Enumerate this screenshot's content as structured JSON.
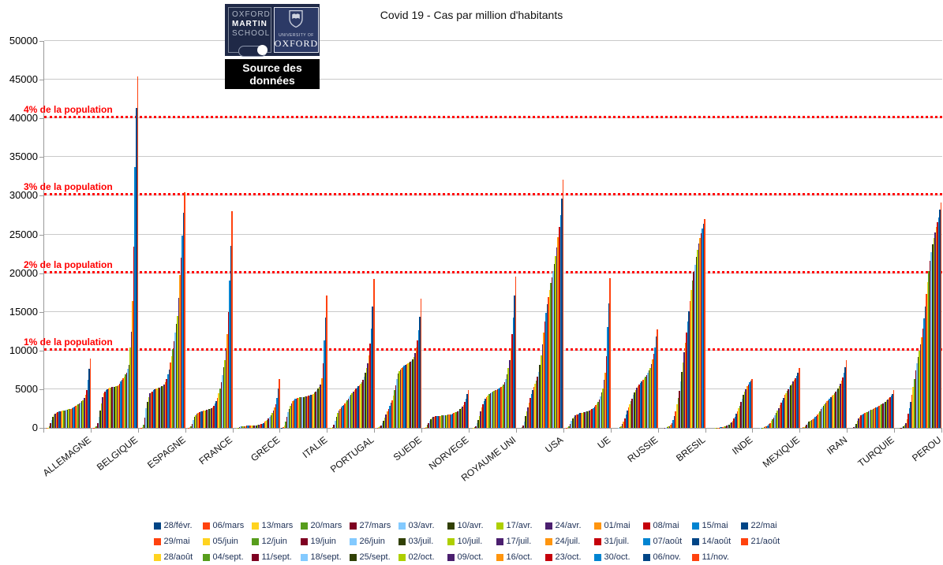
{
  "page": {
    "title": "Covid 19 - Cas par million d'habitants"
  },
  "logo": {
    "school_line1": "OXFORD",
    "school_line2": "MARTIN",
    "school_line3": "SCHOOL",
    "university_line": "UNIVERSITY OF",
    "oxford_word": "OXFORD",
    "source_label": "Source des données"
  },
  "chart_data": {
    "type": "grouped-bar",
    "title": "Covid 19 - Cas par million d'habitants",
    "xlabel": "",
    "ylabel": "",
    "ylim": [
      0,
      50000
    ],
    "y_ticks": [
      0,
      5000,
      10000,
      15000,
      20000,
      25000,
      30000,
      35000,
      40000,
      45000,
      50000
    ],
    "grid": true,
    "legend_position": "bottom",
    "legend_rows": [
      13,
      13,
      12
    ],
    "thresholds": [
      {
        "value": 10000,
        "label": "1% de la population"
      },
      {
        "value": 20000,
        "label": "2% de la population"
      },
      {
        "value": 30000,
        "label": "3% de la population"
      },
      {
        "value": 40000,
        "label": "4% de la population"
      }
    ],
    "threshold_color": "#ff0000",
    "palette": [
      "#004586",
      "#ff420e",
      "#ffd320",
      "#579d1c",
      "#7e0021",
      "#83caff",
      "#314004",
      "#aecf00",
      "#4b1f6f",
      "#ff950e",
      "#c5000b",
      "#0084d1"
    ],
    "dates": [
      "28/févr.",
      "06/mars",
      "13/mars",
      "20/mars",
      "27/mars",
      "03/avr.",
      "10/avr.",
      "17/avr.",
      "24/avr.",
      "01/mai",
      "08/mai",
      "15/mai",
      "22/mai",
      "29/mai",
      "05/juin",
      "12/juin",
      "19/juin",
      "26/juin",
      "03/juil.",
      "10/juil.",
      "17/juil.",
      "24/juil.",
      "31/juil.",
      "07/août",
      "14/août",
      "21/août",
      "28/août",
      "04/sept.",
      "11/sept.",
      "18/sept.",
      "25/sept.",
      "02/oct.",
      "09/oct.",
      "16/oct.",
      "23/oct.",
      "30/oct.",
      "06/nov.",
      "11/nov."
    ],
    "countries": [
      "ALLEMAGNE",
      "BELGIQUE",
      "ESPAGNE",
      "FRANCE",
      "GRECE",
      "ITALIE",
      "PORTUGAL",
      "SUEDE",
      "NORVEGE",
      "ROYAUME UNI",
      "USA",
      "UE",
      "RUSSIE",
      "BRESIL",
      "INDE",
      "MEXIQUE",
      "IRAN",
      "TURQUIE",
      "PEROU"
    ],
    "values_per_million": {
      "ALLEMAGNE": [
        1,
        8,
        45,
        240,
        610,
        1020,
        1440,
        1690,
        1870,
        1970,
        2050,
        2100,
        2140,
        2170,
        2200,
        2230,
        2280,
        2330,
        2370,
        2400,
        2440,
        2490,
        2560,
        2650,
        2760,
        2880,
        3000,
        3100,
        3190,
        3300,
        3430,
        3590,
        3830,
        4230,
        4900,
        6200,
        7600,
        9000
      ],
      "BELGIQUE": [
        1,
        10,
        60,
        195,
        640,
        1420,
        2290,
        3180,
        3960,
        4450,
        4700,
        4870,
        5000,
        5080,
        5150,
        5200,
        5250,
        5290,
        5330,
        5370,
        5430,
        5540,
        5730,
        5970,
        6210,
        6440,
        6650,
        6890,
        7180,
        7590,
        8180,
        10400,
        12400,
        16400,
        23400,
        33700,
        41300,
        45400
      ],
      "ESPAGNE": [
        1,
        8,
        90,
        420,
        1370,
        2500,
        3360,
        3940,
        4440,
        4570,
        4700,
        4880,
        5000,
        5080,
        5130,
        5180,
        5230,
        5280,
        5350,
        5440,
        5600,
        5880,
        6340,
        6880,
        7580,
        8430,
        9270,
        10180,
        11180,
        12310,
        13400,
        14500,
        16800,
        19800,
        22000,
        24800,
        27800,
        30500
      ],
      "FRANCE": [
        1,
        10,
        55,
        185,
        490,
        980,
        1390,
        1660,
        1850,
        1960,
        2060,
        2110,
        2150,
        2200,
        2250,
        2290,
        2330,
        2380,
        2430,
        2490,
        2570,
        2700,
        2900,
        3140,
        3450,
        3900,
        4450,
        5130,
        5900,
        6800,
        7800,
        8800,
        10100,
        12100,
        15000,
        19000,
        23500,
        28000
      ],
      "GRECE": [
        0,
        1,
        9,
        40,
        85,
        160,
        195,
        215,
        235,
        255,
        265,
        270,
        275,
        280,
        285,
        290,
        300,
        320,
        340,
        360,
        390,
        430,
        490,
        560,
        650,
        780,
        920,
        1060,
        1220,
        1420,
        1640,
        1900,
        2220,
        2600,
        3100,
        3900,
        5100,
        6300
      ],
      "ITALIE": [
        15,
        77,
        290,
        780,
        1440,
        2000,
        2450,
        2850,
        3200,
        3450,
        3600,
        3730,
        3800,
        3850,
        3900,
        3930,
        3960,
        3990,
        4010,
        4030,
        4060,
        4090,
        4130,
        4170,
        4230,
        4320,
        4430,
        4560,
        4700,
        4870,
        5050,
        5270,
        5600,
        6400,
        8400,
        11300,
        14300,
        17100
      ],
      "PORTUGAL": [
        0,
        1,
        11,
        100,
        420,
        930,
        1470,
        1900,
        2200,
        2480,
        2650,
        2830,
        3000,
        3170,
        3350,
        3560,
        3810,
        4050,
        4270,
        4490,
        4700,
        4900,
        5090,
        5230,
        5370,
        5510,
        5680,
        5900,
        6240,
        6640,
        7150,
        7720,
        8400,
        9400,
        10900,
        12800,
        15700,
        19200
      ],
      "SUEDE": [
        1,
        14,
        80,
        175,
        300,
        590,
        960,
        1320,
        1710,
        2110,
        2490,
        2880,
        3230,
        3600,
        4150,
        4900,
        5510,
        6270,
        7000,
        7370,
        7570,
        7740,
        7880,
        8000,
        8120,
        8230,
        8340,
        8450,
        8560,
        8700,
        8900,
        9200,
        9700,
        10400,
        11300,
        12600,
        14400,
        16700
      ],
      "NORVEGE": [
        1,
        16,
        140,
        360,
        600,
        940,
        1150,
        1280,
        1380,
        1450,
        1500,
        1520,
        1540,
        1560,
        1580,
        1600,
        1620,
        1640,
        1660,
        1670,
        1690,
        1710,
        1740,
        1780,
        1840,
        1920,
        2000,
        2080,
        2170,
        2280,
        2420,
        2560,
        2760,
        3000,
        3320,
        3760,
        4400,
        4900
      ],
      "ROYAUME UNI": [
        0,
        2,
        12,
        60,
        220,
        570,
        1030,
        1550,
        2090,
        2630,
        3080,
        3440,
        3750,
        4010,
        4210,
        4370,
        4500,
        4610,
        4700,
        4770,
        4840,
        4910,
        4990,
        5080,
        5180,
        5300,
        5440,
        5620,
        5900,
        6300,
        6900,
        7700,
        8800,
        10300,
        12100,
        14300,
        17100,
        19600
      ],
      "USA": [
        0,
        1,
        7,
        58,
        310,
        830,
        1500,
        2100,
        2680,
        3280,
        3870,
        4380,
        4850,
        5280,
        5700,
        6130,
        6600,
        7240,
        8150,
        9400,
        10800,
        12300,
        13700,
        14900,
        16000,
        16900,
        17800,
        18700,
        19500,
        20300,
        21200,
        22200,
        23300,
        24600,
        26000,
        27500,
        29600,
        32100
      ],
      "UE": [
        1,
        10,
        60,
        200,
        500,
        880,
        1190,
        1420,
        1590,
        1700,
        1780,
        1840,
        1890,
        1930,
        1970,
        2010,
        2050,
        2090,
        2130,
        2180,
        2240,
        2320,
        2430,
        2560,
        2720,
        2910,
        3130,
        3380,
        3680,
        4050,
        4600,
        5100,
        6200,
        7100,
        9300,
        13000,
        16100,
        19300
      ],
      "RUSSIE": [
        0,
        0,
        0,
        2,
        7,
        28,
        82,
        220,
        470,
        780,
        1230,
        1780,
        2260,
        2680,
        3080,
        3450,
        3800,
        4230,
        4570,
        4870,
        5150,
        5390,
        5620,
        5830,
        6040,
        6240,
        6440,
        6640,
        6860,
        7110,
        7410,
        7780,
        8270,
        8890,
        9570,
        10350,
        11800,
        12700
      ],
      "BRESIL": [
        0,
        0,
        1,
        5,
        16,
        43,
        92,
        160,
        250,
        430,
        640,
        980,
        1480,
        2090,
        3050,
        3870,
        4830,
        6010,
        7190,
        8490,
        9740,
        11000,
        12300,
        13700,
        15100,
        16400,
        17800,
        19000,
        20200,
        21100,
        22100,
        23000,
        23800,
        24500,
        25200,
        25800,
        26400,
        27000
      ],
      "INDE": [
        0,
        0,
        0,
        0,
        1,
        2,
        5,
        10,
        17,
        26,
        43,
        62,
        90,
        130,
        170,
        220,
        280,
        360,
        450,
        570,
        730,
        940,
        1190,
        1470,
        1790,
        2150,
        2510,
        2900,
        3340,
        3800,
        4250,
        4660,
        5030,
        5350,
        5640,
        5890,
        6130,
        6300
      ],
      "MEXIQUE": [
        0,
        0,
        0,
        1,
        4,
        12,
        25,
        50,
        85,
        160,
        240,
        350,
        480,
        650,
        870,
        1100,
        1330,
        1600,
        1900,
        2220,
        2560,
        2910,
        3260,
        3590,
        3920,
        4230,
        4510,
        4780,
        5030,
        5270,
        5500,
        5730,
        5960,
        6200,
        6450,
        6700,
        7100,
        7700
      ],
      "IRAN": [
        5,
        56,
        135,
        240,
        380,
        630,
        810,
        950,
        1060,
        1160,
        1250,
        1390,
        1560,
        1760,
        1970,
        2190,
        2400,
        2620,
        2830,
        3030,
        3230,
        3420,
        3610,
        3790,
        3970,
        4140,
        4310,
        4480,
        4660,
        4870,
        5110,
        5380,
        5700,
        6090,
        6550,
        7100,
        7810,
        8800
      ],
      "TURQUIE": [
        0,
        0,
        0,
        4,
        64,
        250,
        560,
        930,
        1220,
        1450,
        1630,
        1740,
        1840,
        1930,
        2000,
        2070,
        2140,
        2220,
        2310,
        2380,
        2460,
        2530,
        2600,
        2670,
        2740,
        2820,
        2910,
        3020,
        3140,
        3270,
        3410,
        3550,
        3690,
        3840,
        4000,
        4180,
        4420,
        4900
      ],
      "PEROU": [
        0,
        0,
        1,
        8,
        21,
        55,
        170,
        390,
        640,
        1090,
        1870,
        2550,
        3350,
        4270,
        5340,
        6350,
        7450,
        8330,
        9170,
        9970,
        10750,
        11670,
        12880,
        14200,
        15700,
        17300,
        18800,
        20300,
        21600,
        22700,
        23700,
        24500,
        25300,
        26000,
        26600,
        27200,
        28200,
        29100
      ]
    }
  }
}
